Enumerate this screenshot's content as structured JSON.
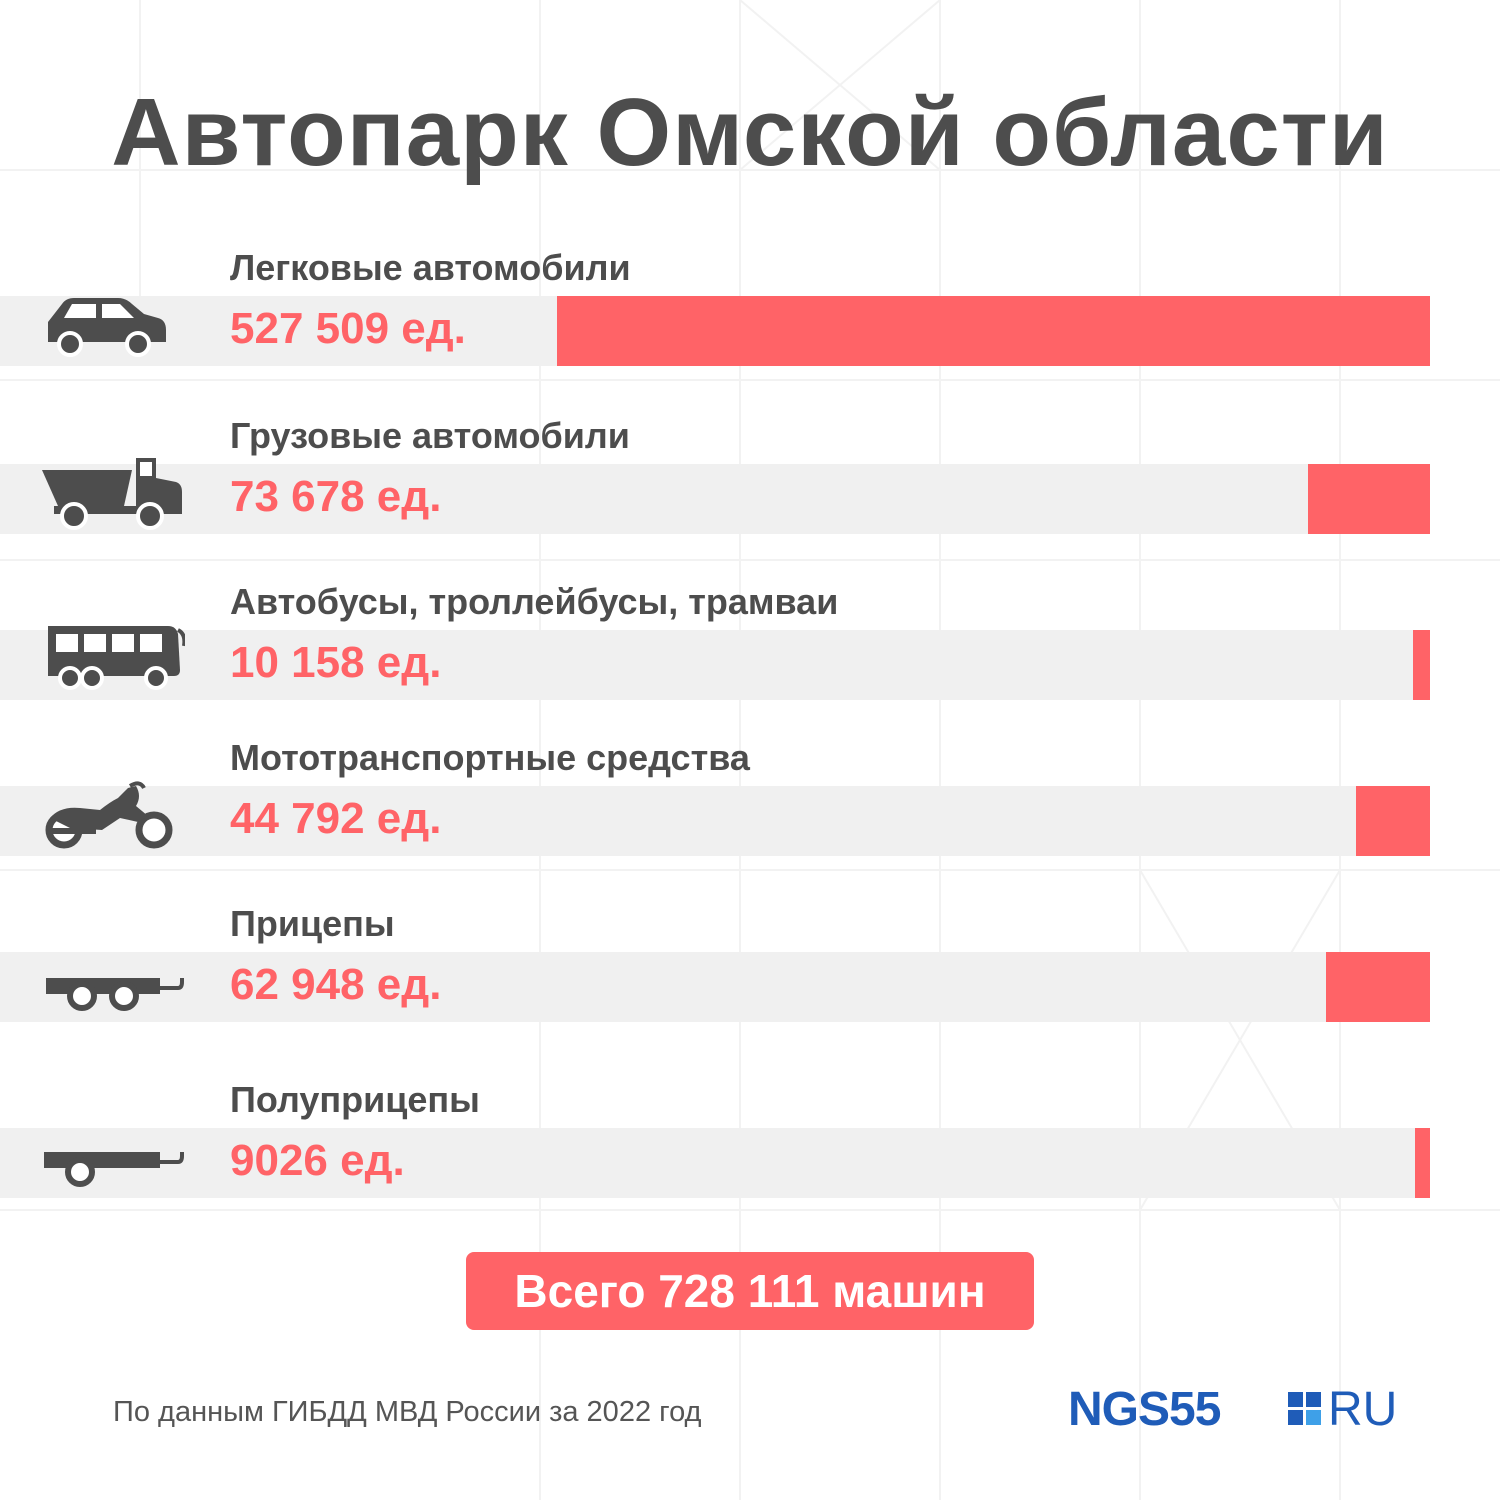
{
  "header": {
    "title": "Автопарк Омской области"
  },
  "chart_data": {
    "type": "bar",
    "orientation": "horizontal",
    "categories": [
      "Легковые автомобили",
      "Грузовые автомобили",
      "Автобусы, троллейбусы, трамваи",
      "Мототранспортные средства",
      "Прицепы",
      "Полуприцепы"
    ],
    "values": [
      527509,
      73678,
      10158,
      44792,
      62948,
      9026
    ],
    "value_labels": [
      "527 509 ед.",
      "73 678 ед.",
      "10 158 ед.",
      "44 792 ед.",
      "62 948 ед.",
      "9026 ед."
    ],
    "icons": [
      "car-icon",
      "dump-truck-icon",
      "bus-icon",
      "motorcycle-icon",
      "trailer-icon",
      "semi-trailer-icon"
    ],
    "bar_color": "#ff6367",
    "track_color": "#f0f0f0"
  },
  "total": {
    "label": "Всего 728 111 машин"
  },
  "footer": {
    "source": "По данным ГИБДД МВД России за 2022 год"
  },
  "logo": {
    "left": "NGS55",
    "right": "RU",
    "color": "#1f5cb8"
  }
}
